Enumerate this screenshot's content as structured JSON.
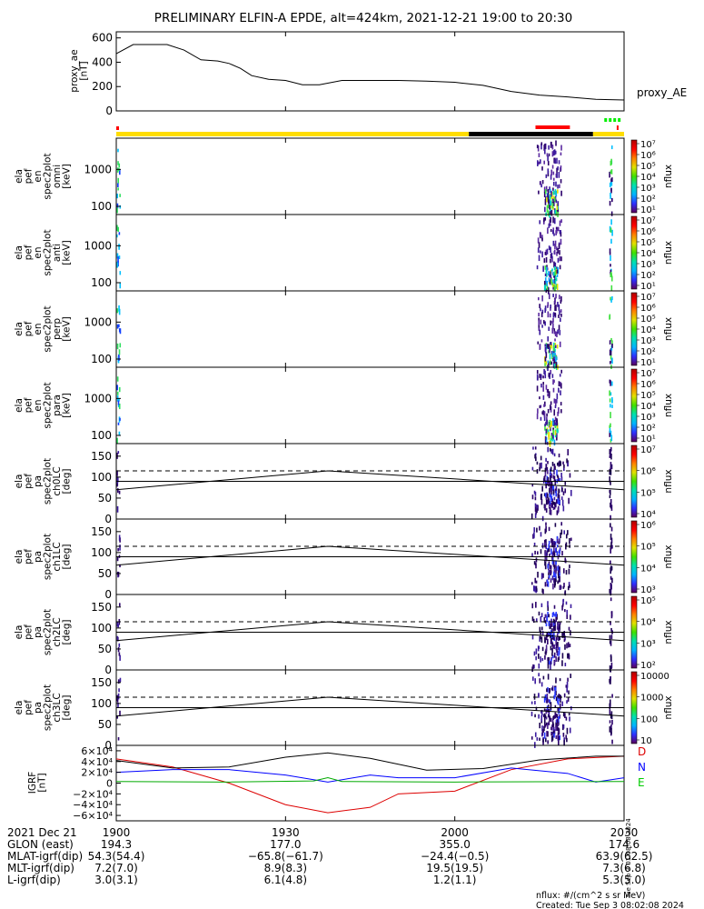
{
  "title": "PRELIMINARY ELFIN-A EPDE, alt=424km, 2021-12-21 19:00 to 20:30",
  "time_ticks": [
    "1900",
    "1930",
    "2000",
    "2030"
  ],
  "panels": {
    "proxy_ae": {
      "ylabel_lines": [
        "proxy_ae",
        "[nT]"
      ],
      "right_label": "proxy_AE",
      "yticks": [
        "600",
        "400",
        "200",
        "0"
      ]
    },
    "energy_panels": [
      {
        "ylabel_lines": [
          "ela",
          "pef",
          "en",
          "spec2plot",
          "omni",
          "[keV]"
        ],
        "yticks": [
          "1000",
          "100"
        ],
        "cbar_ticks": [
          "10⁷",
          "10⁶",
          "10⁵",
          "10⁴",
          "10³",
          "10²",
          "10¹"
        ],
        "cbar_label": "nflux"
      },
      {
        "ylabel_lines": [
          "ela",
          "pef",
          "en",
          "spec2plot",
          "anti",
          "[keV]"
        ],
        "yticks": [
          "1000",
          "100"
        ],
        "cbar_ticks": [
          "10⁷",
          "10⁶",
          "10⁵",
          "10⁴",
          "10³",
          "10²",
          "10¹"
        ],
        "cbar_label": "nflux"
      },
      {
        "ylabel_lines": [
          "ela",
          "pef",
          "en",
          "spec2plot",
          "perp",
          "[keV]"
        ],
        "yticks": [
          "1000",
          "100"
        ],
        "cbar_ticks": [
          "10⁷",
          "10⁶",
          "10⁵",
          "10⁴",
          "10³",
          "10²",
          "10¹"
        ],
        "cbar_label": "nflux"
      },
      {
        "ylabel_lines": [
          "ela",
          "pef",
          "en",
          "spec2plot",
          "para",
          "[keV]"
        ],
        "yticks": [
          "1000",
          "100"
        ],
        "cbar_ticks": [
          "10⁷",
          "10⁶",
          "10⁵",
          "10⁴",
          "10³",
          "10²",
          "10¹"
        ],
        "cbar_label": "nflux"
      }
    ],
    "pa_panels": [
      {
        "ylabel_lines": [
          "ela",
          "pef",
          "pa",
          "spec2plot",
          "ch0LC",
          "[deg]"
        ],
        "yticks": [
          "150",
          "100",
          "50",
          "0"
        ],
        "cbar_ticks": [
          "10⁷",
          "10⁶",
          "10⁵",
          "10⁴"
        ],
        "cbar_label": "nflux"
      },
      {
        "ylabel_lines": [
          "ela",
          "pef",
          "pa",
          "spec2plot",
          "ch1LC",
          "[deg]"
        ],
        "yticks": [
          "150",
          "100",
          "50",
          "0"
        ],
        "cbar_ticks": [
          "10⁶",
          "10⁵",
          "10⁴",
          "10³"
        ],
        "cbar_label": "nflux"
      },
      {
        "ylabel_lines": [
          "ela",
          "pef",
          "pa",
          "spec2plot",
          "ch2LC",
          "[deg]"
        ],
        "yticks": [
          "150",
          "100",
          "50",
          "0"
        ],
        "cbar_ticks": [
          "10⁵",
          "10⁴",
          "10³",
          "10²"
        ],
        "cbar_label": "nflux"
      },
      {
        "ylabel_lines": [
          "ela",
          "pef",
          "pa",
          "spec2plot",
          "ch3LC",
          "[deg]"
        ],
        "yticks": [
          "150",
          "100",
          "50",
          "0"
        ],
        "cbar_ticks": [
          "10000",
          "1000",
          "100",
          "10"
        ],
        "cbar_label": "nflux"
      }
    ],
    "igrf": {
      "ylabel_lines": [
        "IGRF",
        "[nT]"
      ],
      "yticks": [
        "6×10⁴",
        "4×10⁴",
        "2×10⁴",
        "0",
        "−2×10⁴",
        "−4×10⁴",
        "−6×10⁴"
      ],
      "legend": [
        {
          "label": "D",
          "color": "#dd0000"
        },
        {
          "label": "N",
          "color": "#0000ff"
        },
        {
          "label": "E",
          "color": "#00cc00"
        }
      ]
    }
  },
  "ephemeris": {
    "rows": [
      {
        "label": "2021 Dec 21",
        "values": [
          "1900",
          "1930",
          "2000",
          "2030"
        ]
      },
      {
        "label": "GLON (east)",
        "values": [
          "194.3",
          "177.0",
          "355.0",
          "174.6"
        ]
      },
      {
        "label": "MLAT-igrf(dip)",
        "values": [
          "54.3(54.4)",
          "−65.8(−61.7)",
          "−24.4(−0.5)",
          "63.9(62.5)"
        ]
      },
      {
        "label": "MLT-igrf(dip)",
        "values": [
          "7.2(7.0)",
          "8.9(8.3)",
          "19.5(19.5)",
          "7.3(6.8)"
        ]
      },
      {
        "label": "L-igrf(dip)",
        "values": [
          "3.0(3.1)",
          "6.1(4.8)",
          "1.2(1.1)",
          "5.3(5.0)"
        ]
      }
    ]
  },
  "footer": {
    "units": "nflux: #/(cm^2 s sr MeV)",
    "created": "Created: Tue Sep  3 08:02:08 2024",
    "vertical_stamp": "Tue Sep  3 01:08:08 2024"
  },
  "colors": {
    "yellow_bar": "#ffdd00",
    "black_bar": "#000000",
    "red_marker": "#ff0000",
    "green_marker": "#00ee00"
  },
  "chart_data": [
    {
      "type": "line",
      "title": "PRELIMINARY ELFIN-A EPDE, alt=424km, 2021-12-21 19:00 to 20:30",
      "xlabel": "",
      "ylabel": "proxy_ae [nT]",
      "x_range_minutes": [
        0,
        90
      ],
      "ylim": [
        0,
        650
      ],
      "series": [
        {
          "name": "proxy_AE",
          "x": [
            0,
            3,
            6,
            9,
            12,
            15,
            18,
            20,
            22,
            24,
            27,
            30,
            33,
            36,
            40,
            45,
            50,
            55,
            60,
            65,
            70,
            75,
            80,
            85,
            90
          ],
          "values": [
            470,
            545,
            545,
            545,
            500,
            420,
            410,
            390,
            350,
            290,
            260,
            250,
            215,
            215,
            250,
            250,
            250,
            245,
            235,
            210,
            160,
            130,
            115,
            95,
            90
          ]
        }
      ]
    },
    {
      "type": "heatmap",
      "ylabel": "ela pef en spec2plot [keV]",
      "yscale": "log",
      "ylim": [
        60,
        7000
      ],
      "colorbar": {
        "label": "nflux",
        "scale": "log",
        "range": [
          10,
          10000000
        ]
      },
      "activity_intervals_minutes": [
        [
          0,
          0.6
        ],
        [
          74.5,
          78.8
        ],
        [
          87.3,
          87.8
        ]
      ]
    },
    {
      "type": "heatmap",
      "ylabel": "ela pef pa spec2plot [deg]",
      "ylim": [
        0,
        180
      ],
      "series": [
        {
          "name": "loss cone (solid)",
          "x": [
            0,
            37.5,
            90
          ],
          "values": [
            70,
            115,
            70
          ]
        },
        {
          "name": "anti-loss cone (solid)",
          "x": [
            0,
            90
          ],
          "values": [
            90,
            90
          ]
        },
        {
          "name": "reference (dashed)",
          "x": [
            0,
            90
          ],
          "values": [
            115,
            115
          ]
        }
      ],
      "activity_intervals_minutes": [
        [
          73.5,
          80.5
        ],
        [
          87.3,
          87.8
        ]
      ]
    },
    {
      "type": "line",
      "ylabel": "IGRF [nT]",
      "ylim": [
        -70000,
        70000
      ],
      "series": [
        {
          "name": "D",
          "x": [
            0,
            10,
            20,
            30,
            37.5,
            45,
            50,
            60,
            70,
            80,
            90
          ],
          "values": [
            45000,
            30000,
            0,
            -40000,
            -55000,
            -45000,
            -20000,
            -15000,
            25000,
            45000,
            50000
          ]
        },
        {
          "name": "N",
          "x": [
            0,
            10,
            20,
            30,
            37.5,
            45,
            50,
            60,
            70,
            80,
            85,
            90
          ],
          "values": [
            20000,
            25000,
            25000,
            15000,
            2000,
            15000,
            10000,
            10000,
            28000,
            18000,
            2000,
            10000
          ]
        },
        {
          "name": "E",
          "x": [
            0,
            20,
            35,
            37.5,
            40,
            60,
            90
          ],
          "values": [
            3000,
            2000,
            4000,
            10000,
            3000,
            2000,
            3000
          ]
        },
        {
          "name": "Total",
          "x": [
            0,
            10,
            20,
            30,
            37.5,
            45,
            55,
            65,
            75,
            85,
            90
          ],
          "values": [
            42000,
            28000,
            30000,
            48000,
            56000,
            46000,
            24000,
            27000,
            43000,
            50000,
            50000
          ]
        }
      ]
    }
  ]
}
